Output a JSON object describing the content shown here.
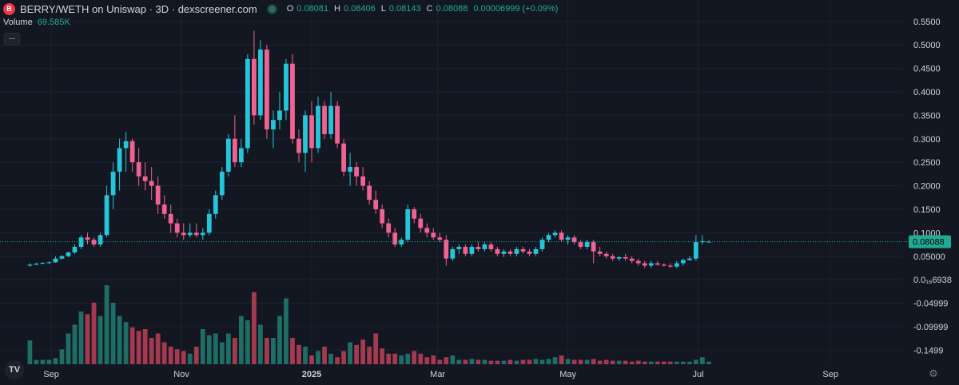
{
  "header": {
    "title": "BERRY/WETH on Uniswap · 3D · dexscreener.com",
    "logo_text": "B",
    "ohlc": {
      "o_label": "O",
      "o_value": "0.08081",
      "h_label": "H",
      "h_value": "0.08406",
      "l_label": "L",
      "l_value": "0.08143",
      "c_label": "C",
      "c_value": "0.08088",
      "change": "0.00006999 (+0.09%)"
    }
  },
  "volume": {
    "label": "Volume",
    "value": "69.585K"
  },
  "tv_logo_text": "TV",
  "colors": {
    "background": "#131722",
    "up": "#26c6da",
    "down": "#f06292",
    "vol_up": "#1f6e66",
    "vol_down": "#a33a4f",
    "grid": "#1e222d",
    "price_badge": "#22ab94",
    "axis_text": "#d1d4dc"
  },
  "chart_data": {
    "type": "candlestick",
    "price_axis": {
      "labels": [
        "0.5500",
        "0.5000",
        "0.4500",
        "0.4000",
        "0.3500",
        "0.3000",
        "0.2500",
        "0.2000",
        "0.1500",
        "0.1000",
        "0.05000",
        "0.0₁₆6938",
        "-0.04999",
        "-0.09999",
        "-0.1499"
      ],
      "values": [
        0.55,
        0.5,
        0.45,
        0.4,
        0.35,
        0.3,
        0.25,
        0.2,
        0.15,
        0.1,
        0.05,
        0,
        -0.05,
        -0.1,
        -0.15
      ],
      "range": [
        -0.18,
        0.57
      ]
    },
    "time_axis": {
      "labels": [
        "Sep",
        "Nov",
        "2025",
        "Mar",
        "May",
        "Jul",
        "Sep"
      ],
      "dates": [
        "2024-09-01",
        "2024-11-01",
        "2025-01-01",
        "2025-03-01",
        "2025-05-01",
        "2025-07-01",
        "2025-09-01"
      ],
      "bold": [
        false,
        false,
        true,
        false,
        false,
        false,
        false
      ],
      "range": [
        "2024-08-08",
        "2025-10-05"
      ]
    },
    "last_price": {
      "value": 0.08088,
      "label": "0.08088"
    },
    "candle_start": "2024-08-22",
    "candle_interval_days": 3,
    "candles": [
      [
        0.03,
        0.035,
        0.028,
        0.032
      ],
      [
        0.032,
        0.036,
        0.031,
        0.034
      ],
      [
        0.034,
        0.037,
        0.033,
        0.036
      ],
      [
        0.036,
        0.039,
        0.034,
        0.037
      ],
      [
        0.037,
        0.05,
        0.036,
        0.045
      ],
      [
        0.045,
        0.052,
        0.043,
        0.05
      ],
      [
        0.05,
        0.06,
        0.048,
        0.058
      ],
      [
        0.058,
        0.075,
        0.055,
        0.07
      ],
      [
        0.07,
        0.095,
        0.065,
        0.09
      ],
      [
        0.09,
        0.1,
        0.075,
        0.085
      ],
      [
        0.085,
        0.09,
        0.07,
        0.075
      ],
      [
        0.075,
        0.1,
        0.07,
        0.095
      ],
      [
        0.095,
        0.2,
        0.09,
        0.18
      ],
      [
        0.18,
        0.25,
        0.15,
        0.23
      ],
      [
        0.23,
        0.3,
        0.19,
        0.28
      ],
      [
        0.28,
        0.315,
        0.23,
        0.295
      ],
      [
        0.295,
        0.3,
        0.23,
        0.25
      ],
      [
        0.25,
        0.28,
        0.2,
        0.22
      ],
      [
        0.22,
        0.25,
        0.19,
        0.21
      ],
      [
        0.21,
        0.24,
        0.17,
        0.2
      ],
      [
        0.2,
        0.22,
        0.14,
        0.16
      ],
      [
        0.16,
        0.18,
        0.13,
        0.14
      ],
      [
        0.14,
        0.16,
        0.1,
        0.12
      ],
      [
        0.12,
        0.13,
        0.09,
        0.1
      ],
      [
        0.1,
        0.12,
        0.085,
        0.095
      ],
      [
        0.095,
        0.12,
        0.09,
        0.1
      ],
      [
        0.1,
        0.12,
        0.09,
        0.095
      ],
      [
        0.095,
        0.11,
        0.085,
        0.1
      ],
      [
        0.1,
        0.15,
        0.095,
        0.14
      ],
      [
        0.14,
        0.19,
        0.13,
        0.18
      ],
      [
        0.18,
        0.24,
        0.17,
        0.23
      ],
      [
        0.23,
        0.31,
        0.22,
        0.3
      ],
      [
        0.3,
        0.35,
        0.24,
        0.25
      ],
      [
        0.25,
        0.3,
        0.24,
        0.28
      ],
      [
        0.28,
        0.48,
        0.27,
        0.47
      ],
      [
        0.47,
        0.53,
        0.33,
        0.35
      ],
      [
        0.35,
        0.51,
        0.34,
        0.49
      ],
      [
        0.49,
        0.5,
        0.3,
        0.32
      ],
      [
        0.32,
        0.36,
        0.28,
        0.34
      ],
      [
        0.34,
        0.4,
        0.32,
        0.36
      ],
      [
        0.36,
        0.47,
        0.34,
        0.46
      ],
      [
        0.46,
        0.48,
        0.29,
        0.3
      ],
      [
        0.3,
        0.32,
        0.25,
        0.27
      ],
      [
        0.27,
        0.36,
        0.23,
        0.35
      ],
      [
        0.35,
        0.38,
        0.25,
        0.28
      ],
      [
        0.28,
        0.39,
        0.27,
        0.37
      ],
      [
        0.37,
        0.38,
        0.3,
        0.31
      ],
      [
        0.31,
        0.4,
        0.3,
        0.37
      ],
      [
        0.37,
        0.38,
        0.28,
        0.29
      ],
      [
        0.29,
        0.3,
        0.22,
        0.23
      ],
      [
        0.23,
        0.27,
        0.2,
        0.24
      ],
      [
        0.24,
        0.25,
        0.2,
        0.22
      ],
      [
        0.22,
        0.24,
        0.19,
        0.2
      ],
      [
        0.2,
        0.21,
        0.16,
        0.17
      ],
      [
        0.17,
        0.19,
        0.14,
        0.15
      ],
      [
        0.15,
        0.16,
        0.11,
        0.12
      ],
      [
        0.12,
        0.13,
        0.09,
        0.1
      ],
      [
        0.1,
        0.11,
        0.07,
        0.075
      ],
      [
        0.075,
        0.09,
        0.07,
        0.085
      ],
      [
        0.085,
        0.16,
        0.08,
        0.15
      ],
      [
        0.15,
        0.155,
        0.12,
        0.13
      ],
      [
        0.13,
        0.14,
        0.1,
        0.11
      ],
      [
        0.11,
        0.12,
        0.09,
        0.1
      ],
      [
        0.1,
        0.11,
        0.085,
        0.09
      ],
      [
        0.09,
        0.1,
        0.08,
        0.085
      ],
      [
        0.085,
        0.095,
        0.03,
        0.045
      ],
      [
        0.045,
        0.07,
        0.04,
        0.065
      ],
      [
        0.065,
        0.075,
        0.055,
        0.07
      ],
      [
        0.07,
        0.075,
        0.05,
        0.055
      ],
      [
        0.055,
        0.075,
        0.05,
        0.07
      ],
      [
        0.07,
        0.08,
        0.06,
        0.065
      ],
      [
        0.065,
        0.08,
        0.06,
        0.075
      ],
      [
        0.075,
        0.08,
        0.06,
        0.065
      ],
      [
        0.065,
        0.07,
        0.05,
        0.055
      ],
      [
        0.055,
        0.065,
        0.048,
        0.06
      ],
      [
        0.06,
        0.065,
        0.05,
        0.055
      ],
      [
        0.055,
        0.07,
        0.05,
        0.065
      ],
      [
        0.065,
        0.07,
        0.055,
        0.06
      ],
      [
        0.06,
        0.065,
        0.05,
        0.055
      ],
      [
        0.055,
        0.07,
        0.05,
        0.065
      ],
      [
        0.065,
        0.09,
        0.06,
        0.085
      ],
      [
        0.085,
        0.1,
        0.08,
        0.095
      ],
      [
        0.095,
        0.105,
        0.09,
        0.1
      ],
      [
        0.1,
        0.105,
        0.08,
        0.085
      ],
      [
        0.085,
        0.095,
        0.075,
        0.09
      ],
      [
        0.09,
        0.095,
        0.075,
        0.08
      ],
      [
        0.08,
        0.085,
        0.065,
        0.07
      ],
      [
        0.07,
        0.085,
        0.065,
        0.08
      ],
      [
        0.08,
        0.085,
        0.035,
        0.06
      ],
      [
        0.06,
        0.07,
        0.05,
        0.055
      ],
      [
        0.055,
        0.06,
        0.045,
        0.05
      ],
      [
        0.05,
        0.055,
        0.04,
        0.045
      ],
      [
        0.045,
        0.05,
        0.04,
        0.048
      ],
      [
        0.048,
        0.055,
        0.04,
        0.045
      ],
      [
        0.045,
        0.05,
        0.035,
        0.04
      ],
      [
        0.04,
        0.045,
        0.03,
        0.035
      ],
      [
        0.035,
        0.04,
        0.025,
        0.03
      ],
      [
        0.03,
        0.04,
        0.025,
        0.035
      ],
      [
        0.035,
        0.04,
        0.03,
        0.032
      ],
      [
        0.032,
        0.035,
        0.028,
        0.03
      ],
      [
        0.03,
        0.035,
        0.025,
        0.028
      ],
      [
        0.028,
        0.04,
        0.025,
        0.035
      ],
      [
        0.035,
        0.045,
        0.03,
        0.042
      ],
      [
        0.042,
        0.05,
        0.04,
        0.045
      ],
      [
        0.045,
        0.095,
        0.04,
        0.08
      ],
      [
        0.08,
        0.095,
        0.075,
        0.082
      ],
      [
        0.0808,
        0.08406,
        0.08143,
        0.08088
      ]
    ],
    "volumes": [
      0.27,
      0.05,
      0.05,
      0.05,
      0.07,
      0.17,
      0.35,
      0.45,
      0.6,
      0.57,
      0.7,
      0.55,
      0.9,
      0.7,
      0.55,
      0.48,
      0.42,
      0.38,
      0.4,
      0.3,
      0.35,
      0.25,
      0.2,
      0.17,
      0.15,
      0.12,
      0.2,
      0.4,
      0.33,
      0.35,
      0.25,
      0.35,
      0.3,
      0.55,
      0.5,
      0.82,
      0.45,
      0.3,
      0.3,
      0.55,
      0.75,
      0.3,
      0.22,
      0.2,
      0.1,
      0.15,
      0.2,
      0.12,
      0.08,
      0.15,
      0.25,
      0.22,
      0.28,
      0.2,
      0.35,
      0.18,
      0.12,
      0.12,
      0.1,
      0.12,
      0.15,
      0.12,
      0.08,
      0.1,
      0.05,
      0.08,
      0.1,
      0.05,
      0.05,
      0.06,
      0.05,
      0.05,
      0.04,
      0.04,
      0.04,
      0.05,
      0.04,
      0.05,
      0.05,
      0.06,
      0.05,
      0.06,
      0.08,
      0.1,
      0.06,
      0.05,
      0.05,
      0.05,
      0.06,
      0.04,
      0.05,
      0.04,
      0.04,
      0.04,
      0.03,
      0.04,
      0.03,
      0.03,
      0.03,
      0.03,
      0.03,
      0.03,
      0.03,
      0.03,
      0.05,
      0.08,
      0.03
    ]
  }
}
